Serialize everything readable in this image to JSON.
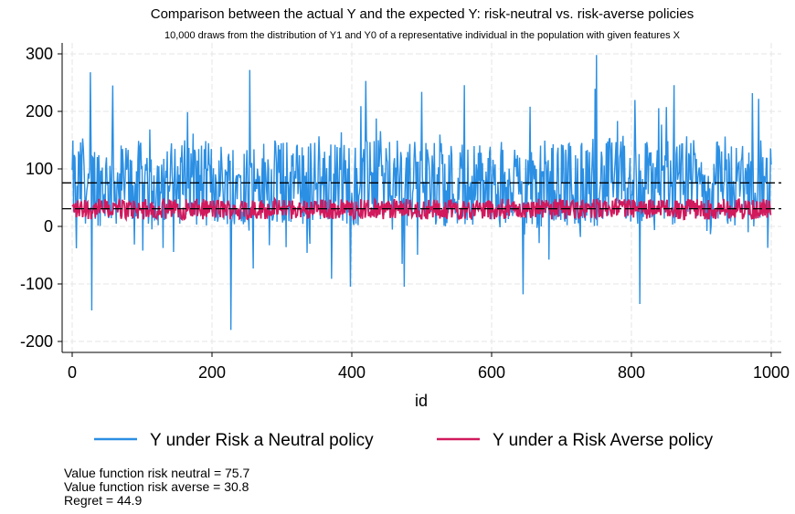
{
  "chart_data": {
    "type": "line",
    "title": "Comparison between the actual Y and the expected Y: risk-neutral vs. risk-averse policies",
    "subtitle": "10,000 draws from the distribution of Y1 and Y0 of a representative individual in the population with given features X",
    "xlabel": "id",
    "ylabel": "",
    "xlim": [
      0,
      1000
    ],
    "ylim": [
      -200,
      300
    ],
    "x_ticks": [
      0,
      200,
      400,
      600,
      800,
      1000
    ],
    "y_ticks": [
      300,
      200,
      100,
      0,
      -100,
      -200
    ],
    "grid": true,
    "legend_position": "bottom",
    "series": [
      {
        "name": "Y under Risk a Neutral policy",
        "color": "#2b8fe3",
        "approx_mean": 75,
        "approx_min": -180,
        "approx_max": 298,
        "keypoints": [
          [
            6,
            -38
          ],
          [
            15,
            153
          ],
          [
            26,
            268
          ],
          [
            28,
            -146
          ],
          [
            58,
            245
          ],
          [
            227,
            -180
          ],
          [
            254,
            272
          ],
          [
            420,
            253
          ],
          [
            475,
            -105
          ],
          [
            500,
            234
          ],
          [
            645,
            -118
          ],
          [
            750,
            298
          ],
          [
            812,
            -135
          ]
        ]
      },
      {
        "name": "Y under a Risk Averse policy",
        "color": "#d1195c",
        "approx_mean": 30,
        "approx_min": 0,
        "approx_max": 58
      }
    ],
    "reference_lines": [
      75.7,
      30.8
    ]
  },
  "notes": [
    "Value function risk neutral = 75.7",
    "Value function risk averse = 30.8",
    "Regret = 44.9"
  ]
}
